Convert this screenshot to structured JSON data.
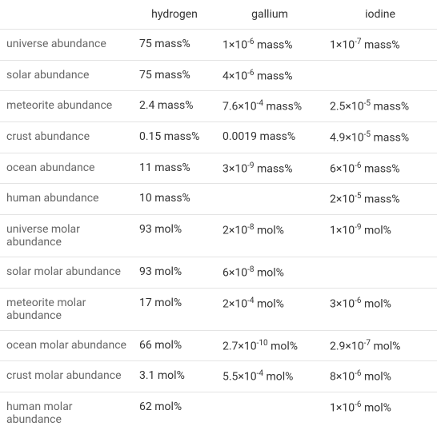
{
  "table": {
    "columns": [
      "",
      "hydrogen",
      "gallium",
      "iodine"
    ],
    "rows": [
      {
        "label": "universe abundance",
        "hydrogen": "75 mass%",
        "gallium": "1×10⁻⁶ mass%",
        "iodine": "1×10⁻⁷ mass%"
      },
      {
        "label": "solar abundance",
        "hydrogen": "75 mass%",
        "gallium": "4×10⁻⁶ mass%",
        "iodine": ""
      },
      {
        "label": "meteorite abundance",
        "hydrogen": "2.4 mass%",
        "gallium": "7.6×10⁻⁴ mass%",
        "iodine": "2.5×10⁻⁵ mass%"
      },
      {
        "label": "crust abundance",
        "hydrogen": "0.15 mass%",
        "gallium": "0.0019 mass%",
        "iodine": "4.9×10⁻⁵ mass%"
      },
      {
        "label": "ocean abundance",
        "hydrogen": "11 mass%",
        "gallium": "3×10⁻⁹ mass%",
        "iodine": "6×10⁻⁶ mass%"
      },
      {
        "label": "human abundance",
        "hydrogen": "10 mass%",
        "gallium": "",
        "iodine": "2×10⁻⁵ mass%"
      },
      {
        "label": "universe molar abundance",
        "hydrogen": "93 mol%",
        "gallium": "2×10⁻⁸ mol%",
        "iodine": "1×10⁻⁹ mol%"
      },
      {
        "label": "solar molar abundance",
        "hydrogen": "93 mol%",
        "gallium": "6×10⁻⁸ mol%",
        "iodine": ""
      },
      {
        "label": "meteorite molar abundance",
        "hydrogen": "17 mol%",
        "gallium": "2×10⁻⁴ mol%",
        "iodine": "3×10⁻⁶ mol%"
      },
      {
        "label": "ocean molar abundance",
        "hydrogen": "66 mol%",
        "gallium": "2.7×10⁻¹⁰ mol%",
        "iodine": "2.9×10⁻⁷ mol%"
      },
      {
        "label": "crust molar abundance",
        "hydrogen": "3.1 mol%",
        "gallium": "5.5×10⁻⁴ mol%",
        "iodine": "8×10⁻⁶ mol%"
      },
      {
        "label": "human molar abundance",
        "hydrogen": "62 mol%",
        "gallium": "",
        "iodine": "1×10⁻⁶ mol%"
      }
    ],
    "colors": {
      "border": "#e4e4e4",
      "label_text": "#666666",
      "value_text": "#333333",
      "background": "#ffffff"
    },
    "fontsize": 14
  }
}
